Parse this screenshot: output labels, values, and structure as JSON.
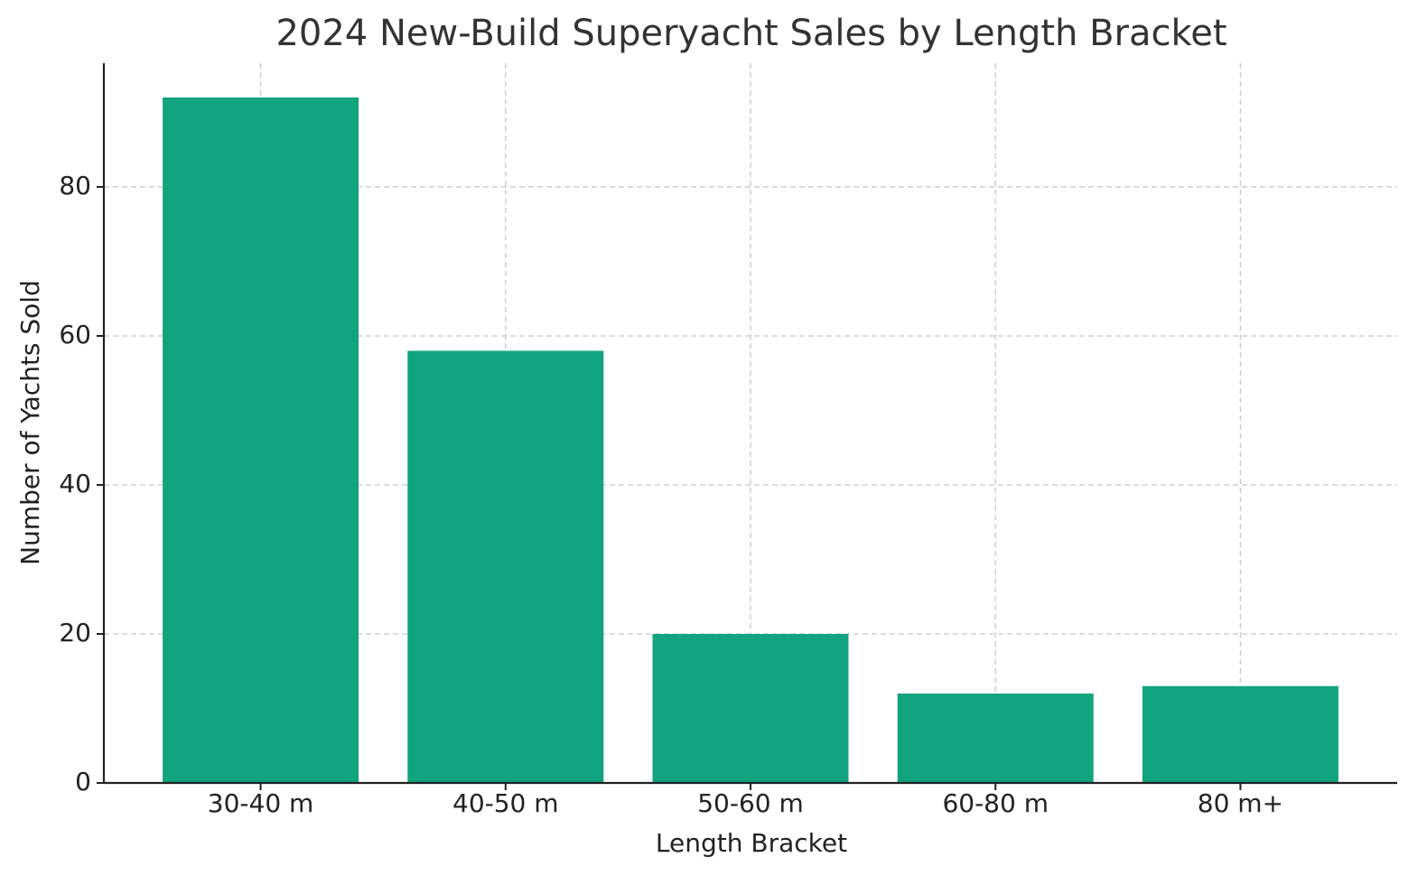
{
  "chart_data": {
    "type": "bar",
    "title": "2024 New-Build Superyacht Sales by Length Bracket",
    "x_label": "Length Bracket",
    "y_label": "Number of Yachts Sold",
    "categories": [
      "30-40 m",
      "40-50 m",
      "50-60 m",
      "60-80 m",
      "80 m+"
    ],
    "values": [
      92,
      58,
      20,
      12,
      13
    ],
    "color": "#12a37f",
    "ylim": [
      0,
      96.6
    ],
    "yticks": [
      0,
      20,
      40,
      60,
      80
    ],
    "grid": true
  }
}
